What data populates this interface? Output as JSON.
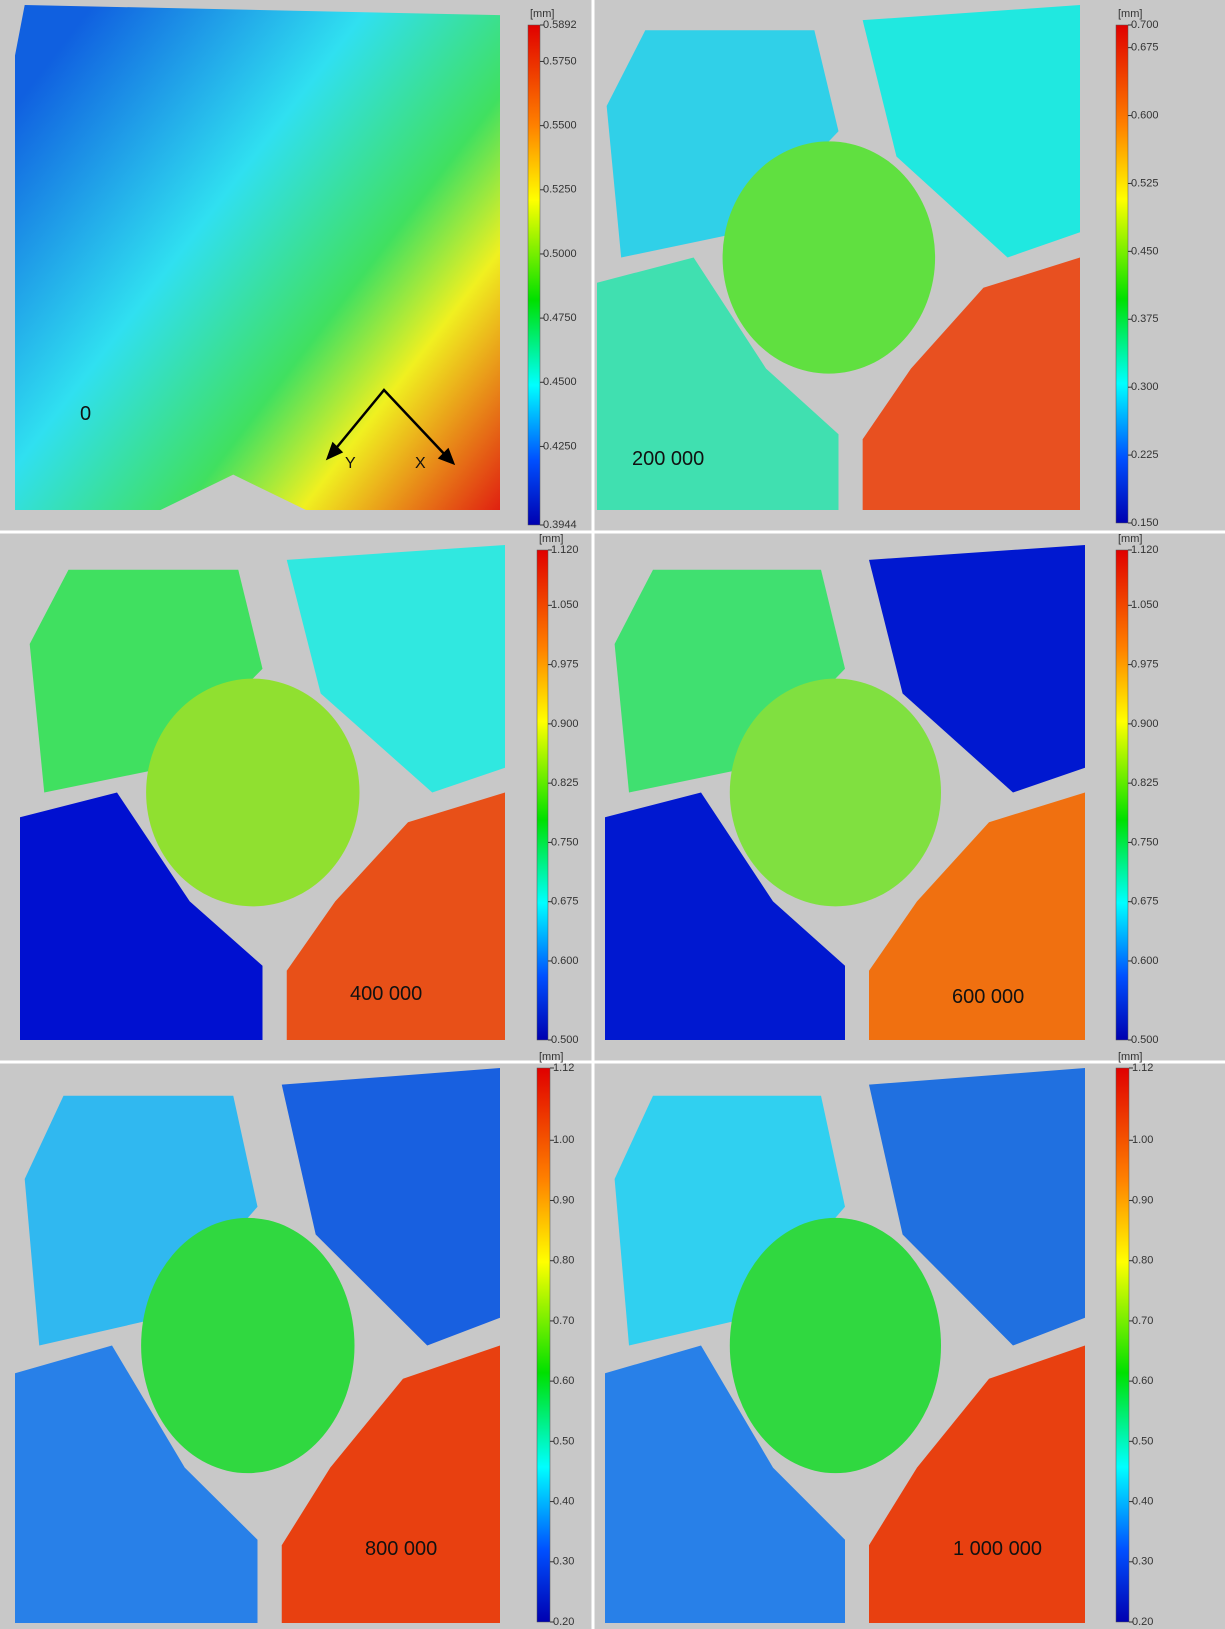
{
  "panels": [
    {
      "label": "0",
      "unit": "[mm]",
      "ticks": [
        "0.5892",
        "0.5750",
        "0.5500",
        "0.5250",
        "0.5000",
        "0.4750",
        "0.4500",
        "0.4250",
        "0.3944"
      ]
    },
    {
      "label": "200 000",
      "unit": "[mm]",
      "ticks": [
        "0.700",
        "0.675",
        "0.600",
        "0.525",
        "0.450",
        "0.375",
        "0.300",
        "0.225",
        "0.150"
      ]
    },
    {
      "label": "400 000",
      "unit": "[mm]",
      "ticks": [
        "1.120",
        "1.050",
        "0.975",
        "0.900",
        "0.825",
        "0.750",
        "0.675",
        "0.600",
        "0.500"
      ]
    },
    {
      "label": "600 000",
      "unit": "[mm]",
      "ticks": [
        "1.120",
        "1.050",
        "0.975",
        "0.900",
        "0.825",
        "0.750",
        "0.675",
        "0.600",
        "0.500"
      ]
    },
    {
      "label": "800 000",
      "unit": "[mm]",
      "ticks": [
        "1.12",
        "1.00",
        "0.90",
        "0.80",
        "0.70",
        "0.60",
        "0.50",
        "0.40",
        "0.30",
        "0.20"
      ]
    },
    {
      "label": "1 000 000",
      "unit": "[mm]",
      "ticks": [
        "1.12",
        "1.00",
        "0.90",
        "0.80",
        "0.70",
        "0.60",
        "0.50",
        "0.40",
        "0.30",
        "0.20"
      ]
    }
  ],
  "axes": {
    "y": "Y",
    "x": "X"
  }
}
